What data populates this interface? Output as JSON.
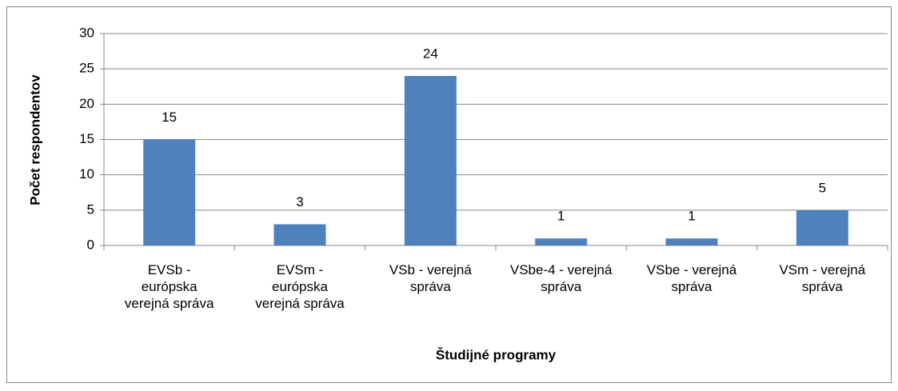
{
  "chart_data": {
    "type": "bar",
    "categories": [
      "EVSb - európska verejná správa",
      "EVSm - európska verejná správa",
      "VSb - verejná správa",
      "VSbe-4 - verejná správa",
      "VSbe - verejná správa",
      "VSm - verejná správa"
    ],
    "values": [
      15,
      3,
      24,
      1,
      1,
      5
    ],
    "color": "#4f81bd",
    "xlabel": "Študijné programy",
    "ylabel": "Počet respondentov",
    "ylim": [
      0,
      30
    ],
    "yticks": [
      0,
      5,
      10,
      15,
      20,
      25,
      30
    ],
    "grid": true
  }
}
